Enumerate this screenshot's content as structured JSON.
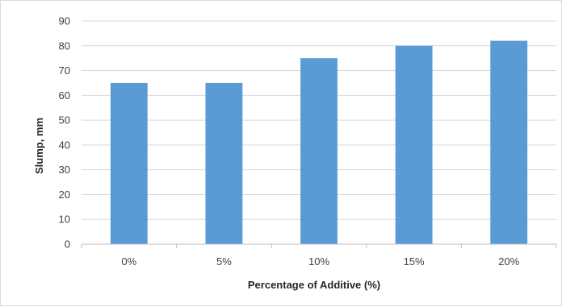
{
  "chart_data": {
    "type": "bar",
    "title": "",
    "xlabel": "Percentage of Additive (%)",
    "ylabel": "Slump, mm",
    "categories": [
      "0%",
      "5%",
      "10%",
      "15%",
      "20%"
    ],
    "values": [
      65,
      65,
      75,
      80,
      82
    ],
    "ylim": [
      0,
      90
    ],
    "yticks": [
      0,
      10,
      20,
      30,
      40,
      50,
      60,
      70,
      80,
      90
    ],
    "grid": true,
    "legend": "none",
    "colors": {
      "bar": "#5b9bd5",
      "grid": "#d9d9d9",
      "axis": "#bfbfbf"
    }
  }
}
